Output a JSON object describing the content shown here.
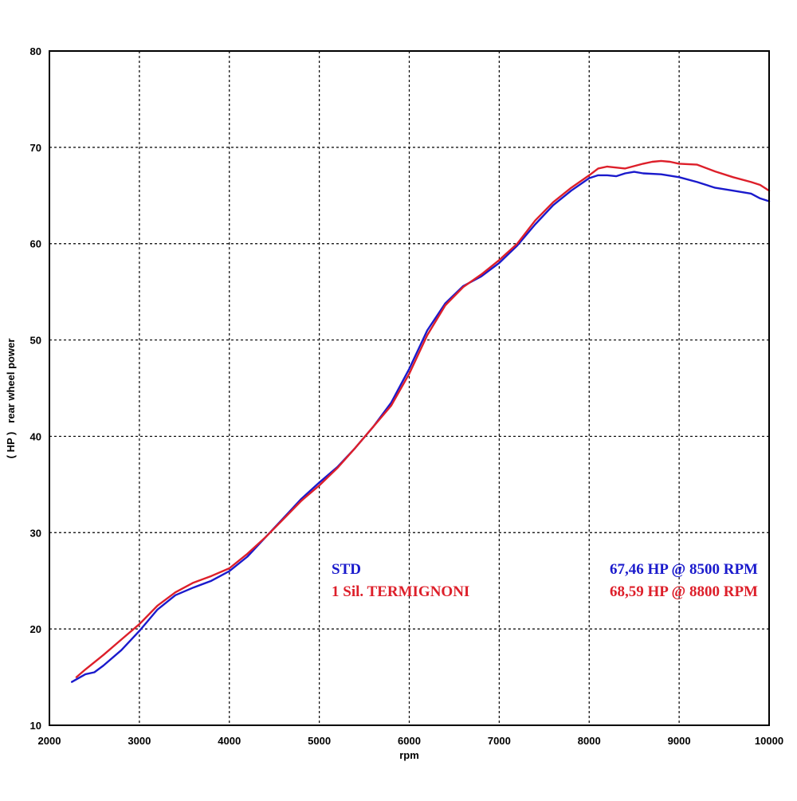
{
  "chart_data": {
    "type": "line",
    "xlabel": "rpm",
    "ylabel": "( HP )   rear wheel power",
    "xlim": [
      2000,
      10000
    ],
    "ylim": [
      10,
      80
    ],
    "xticks": [
      2000,
      3000,
      4000,
      5000,
      6000,
      7000,
      8000,
      9000,
      10000
    ],
    "yticks": [
      10,
      20,
      30,
      40,
      50,
      60,
      70,
      80
    ],
    "grid": true,
    "legend_position": "bottom-right",
    "series": [
      {
        "name": "STD",
        "color": "#1a1acc",
        "peak_label": "67,46 HP @ 8500 RPM",
        "x": [
          2250,
          2400,
          2500,
          2600,
          2800,
          3000,
          3200,
          3400,
          3600,
          3800,
          4000,
          4200,
          4400,
          4600,
          4800,
          5000,
          5200,
          5400,
          5600,
          5800,
          6000,
          6200,
          6400,
          6600,
          6800,
          7000,
          7200,
          7400,
          7600,
          7800,
          8000,
          8100,
          8200,
          8300,
          8400,
          8500,
          8600,
          8800,
          9000,
          9200,
          9400,
          9600,
          9800,
          9900,
          10000
        ],
        "values": [
          14.5,
          15.3,
          15.5,
          16.2,
          17.8,
          19.8,
          22.0,
          23.5,
          24.3,
          25.0,
          26.0,
          27.5,
          29.5,
          31.5,
          33.5,
          35.2,
          36.8,
          38.8,
          41.0,
          43.5,
          47.0,
          51.0,
          53.8,
          55.6,
          56.6,
          58.0,
          59.8,
          62.0,
          64.0,
          65.5,
          66.8,
          67.1,
          67.1,
          67.0,
          67.3,
          67.46,
          67.3,
          67.2,
          66.9,
          66.4,
          65.8,
          65.5,
          65.2,
          64.7,
          64.4
        ]
      },
      {
        "name": "1 Sil. TERMIGNONI",
        "color": "#dd1f2a",
        "peak_label": "68,59 HP @ 8800 RPM",
        "x": [
          2300,
          2400,
          2600,
          2800,
          3000,
          3200,
          3400,
          3600,
          3800,
          4000,
          4200,
          4400,
          4600,
          4800,
          5000,
          5200,
          5400,
          5600,
          5800,
          6000,
          6200,
          6400,
          6600,
          6800,
          7000,
          7200,
          7400,
          7600,
          7800,
          8000,
          8100,
          8200,
          8400,
          8600,
          8700,
          8800,
          8900,
          9000,
          9200,
          9400,
          9600,
          9800,
          9900,
          10000
        ],
        "values": [
          15.0,
          15.8,
          17.3,
          18.9,
          20.5,
          22.4,
          23.8,
          24.8,
          25.5,
          26.3,
          27.8,
          29.5,
          31.4,
          33.3,
          34.9,
          36.7,
          38.8,
          41.0,
          43.2,
          46.5,
          50.5,
          53.6,
          55.5,
          56.8,
          58.3,
          60.0,
          62.4,
          64.3,
          65.8,
          67.1,
          67.8,
          68.0,
          67.8,
          68.3,
          68.5,
          68.59,
          68.5,
          68.3,
          68.2,
          67.5,
          66.9,
          66.4,
          66.1,
          65.5
        ]
      }
    ]
  }
}
